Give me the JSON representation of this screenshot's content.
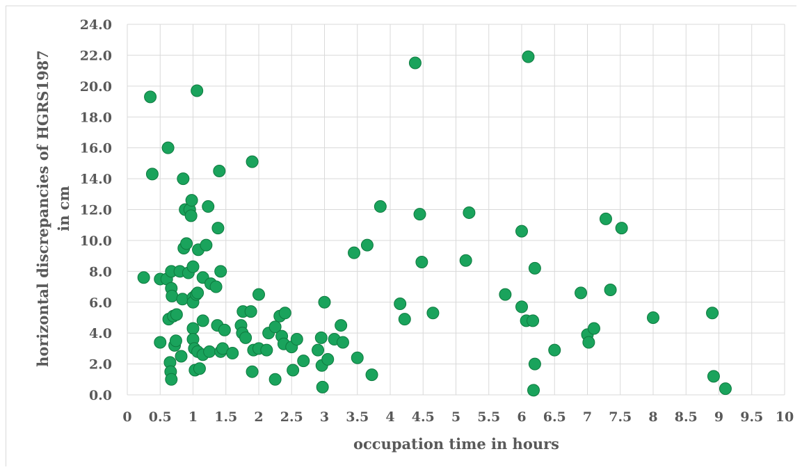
{
  "chart_data": {
    "type": "scatter",
    "title": "",
    "xlabel": "occupation time in hours",
    "ylabel": [
      "horizontal discrepancies of HGRS1987",
      "in cm"
    ],
    "xlim": [
      0,
      10
    ],
    "ylim": [
      0,
      24
    ],
    "x_ticks": [
      0,
      0.5,
      1,
      1.5,
      2,
      2.5,
      3,
      3.5,
      4,
      4.5,
      5,
      5.5,
      6,
      6.5,
      7,
      7.5,
      8,
      8.5,
      9,
      9.5,
      10
    ],
    "x_tick_labels": [
      "0",
      "0.5",
      "1",
      "1.5",
      "2",
      "2.5",
      "3",
      "3.5",
      "4",
      "4.5",
      "5",
      "5.5",
      "6",
      "6.5",
      "7",
      "7.5",
      "8",
      "8.5",
      "9",
      "9.5",
      "10"
    ],
    "y_ticks": [
      0,
      2,
      4,
      6,
      8,
      10,
      12,
      14,
      16,
      18,
      20,
      22,
      24
    ],
    "y_tick_labels": [
      "0.0",
      "2.0",
      "4.0",
      "6.0",
      "8.0",
      "10.0",
      "12.0",
      "14.0",
      "16.0",
      "18.0",
      "20.0",
      "22.0",
      "24.0"
    ],
    "grid": true,
    "legend": "none",
    "marker_color": "#1aa35c",
    "marker_edge": "#0e7a3f",
    "series": [
      {
        "points": [
          [
            0.25,
            7.6
          ],
          [
            0.35,
            19.3
          ],
          [
            0.38,
            14.3
          ],
          [
            0.5,
            7.5
          ],
          [
            0.5,
            3.4
          ],
          [
            0.6,
            7.5
          ],
          [
            0.62,
            16.0
          ],
          [
            0.63,
            4.9
          ],
          [
            0.65,
            2.1
          ],
          [
            0.66,
            1.5
          ],
          [
            0.67,
            1.0
          ],
          [
            0.67,
            6.9
          ],
          [
            0.67,
            8.0
          ],
          [
            0.68,
            6.4
          ],
          [
            0.7,
            5.1
          ],
          [
            0.72,
            3.2
          ],
          [
            0.74,
            3.5
          ],
          [
            0.75,
            5.2
          ],
          [
            0.8,
            8.0
          ],
          [
            0.82,
            2.5
          ],
          [
            0.84,
            6.2
          ],
          [
            0.85,
            14.0
          ],
          [
            0.86,
            9.5
          ],
          [
            0.88,
            12.0
          ],
          [
            0.9,
            9.8
          ],
          [
            0.93,
            7.9
          ],
          [
            0.95,
            12.0
          ],
          [
            0.97,
            11.6
          ],
          [
            0.98,
            12.6
          ],
          [
            1.0,
            6.3
          ],
          [
            1.0,
            8.3
          ],
          [
            1.0,
            4.3
          ],
          [
            1.0,
            3.6
          ],
          [
            1.0,
            6.0
          ],
          [
            1.02,
            3.0
          ],
          [
            1.03,
            1.6
          ],
          [
            1.05,
            6.5
          ],
          [
            1.06,
            19.7
          ],
          [
            1.07,
            6.6
          ],
          [
            1.07,
            2.8
          ],
          [
            1.08,
            9.4
          ],
          [
            1.1,
            1.7
          ],
          [
            1.15,
            7.6
          ],
          [
            1.15,
            4.8
          ],
          [
            1.15,
            2.6
          ],
          [
            1.2,
            9.7
          ],
          [
            1.23,
            12.2
          ],
          [
            1.25,
            2.8
          ],
          [
            1.27,
            7.2
          ],
          [
            1.35,
            7.0
          ],
          [
            1.37,
            4.5
          ],
          [
            1.38,
            10.8
          ],
          [
            1.4,
            14.5
          ],
          [
            1.42,
            8.0
          ],
          [
            1.42,
            2.8
          ],
          [
            1.45,
            3.0
          ],
          [
            1.48,
            4.2
          ],
          [
            1.6,
            2.7
          ],
          [
            1.73,
            4.5
          ],
          [
            1.75,
            4.0
          ],
          [
            1.76,
            5.4
          ],
          [
            1.8,
            3.7
          ],
          [
            1.88,
            5.4
          ],
          [
            1.9,
            15.1
          ],
          [
            1.9,
            1.5
          ],
          [
            1.92,
            2.9
          ],
          [
            2.0,
            6.5
          ],
          [
            2.0,
            3.0
          ],
          [
            2.12,
            2.9
          ],
          [
            2.15,
            4.0
          ],
          [
            2.25,
            4.4
          ],
          [
            2.25,
            1.0
          ],
          [
            2.32,
            5.1
          ],
          [
            2.35,
            3.8
          ],
          [
            2.38,
            3.3
          ],
          [
            2.4,
            5.3
          ],
          [
            2.5,
            3.1
          ],
          [
            2.52,
            1.6
          ],
          [
            2.58,
            3.6
          ],
          [
            2.68,
            2.2
          ],
          [
            2.9,
            2.9
          ],
          [
            2.95,
            3.7
          ],
          [
            2.96,
            1.9
          ],
          [
            3.0,
            6.0
          ],
          [
            2.97,
            0.5
          ],
          [
            3.05,
            2.3
          ],
          [
            3.15,
            3.6
          ],
          [
            3.25,
            4.5
          ],
          [
            3.28,
            3.4
          ],
          [
            3.45,
            9.2
          ],
          [
            3.5,
            2.4
          ],
          [
            3.65,
            9.7
          ],
          [
            3.72,
            1.3
          ],
          [
            3.85,
            12.2
          ],
          [
            4.15,
            5.9
          ],
          [
            4.22,
            4.9
          ],
          [
            4.38,
            21.5
          ],
          [
            4.45,
            11.7
          ],
          [
            4.48,
            8.6
          ],
          [
            4.65,
            5.3
          ],
          [
            5.15,
            8.7
          ],
          [
            5.2,
            11.8
          ],
          [
            5.75,
            6.5
          ],
          [
            6.0,
            10.6
          ],
          [
            6.0,
            5.7
          ],
          [
            6.07,
            4.8
          ],
          [
            6.1,
            21.9
          ],
          [
            6.17,
            4.8
          ],
          [
            6.18,
            0.3
          ],
          [
            6.2,
            2.0
          ],
          [
            6.2,
            8.2
          ],
          [
            6.5,
            2.9
          ],
          [
            6.9,
            6.6
          ],
          [
            7.0,
            3.9
          ],
          [
            7.02,
            3.4
          ],
          [
            7.1,
            4.3
          ],
          [
            7.28,
            11.4
          ],
          [
            7.35,
            6.8
          ],
          [
            7.52,
            10.8
          ],
          [
            8.0,
            5.0
          ],
          [
            8.9,
            5.3
          ],
          [
            8.92,
            1.2
          ],
          [
            9.1,
            0.4
          ]
        ]
      }
    ]
  }
}
